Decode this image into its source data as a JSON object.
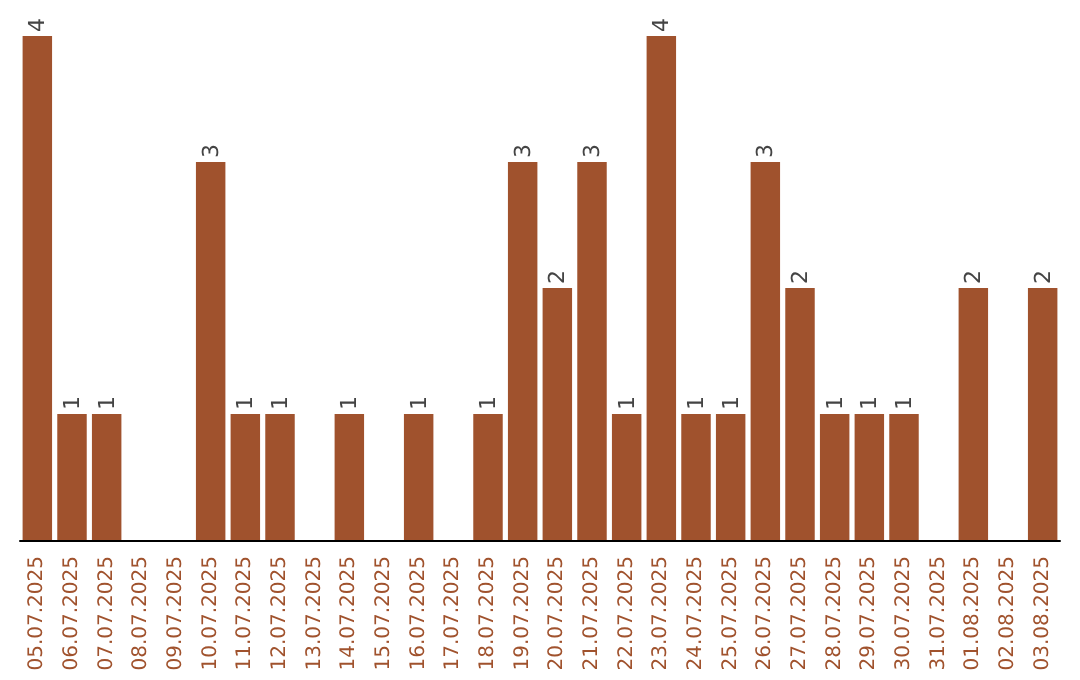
{
  "chart_data": {
    "type": "bar",
    "categories": [
      "05.07.2025",
      "06.07.2025",
      "07.07.2025",
      "08.07.2025",
      "09.07.2025",
      "10.07.2025",
      "11.07.2025",
      "12.07.2025",
      "13.07.2025",
      "14.07.2025",
      "15.07.2025",
      "16.07.2025",
      "17.07.2025",
      "18.07.2025",
      "19.07.2025",
      "20.07.2025",
      "21.07.2025",
      "22.07.2025",
      "23.07.2025",
      "24.07.2025",
      "25.07.2025",
      "26.07.2025",
      "27.07.2025",
      "28.07.2025",
      "29.07.2025",
      "30.07.2025",
      "31.07.2025",
      "01.08.2025",
      "02.08.2025",
      "03.08.2025"
    ],
    "values": [
      4,
      1,
      1,
      0,
      0,
      3,
      1,
      1,
      0,
      1,
      0,
      1,
      0,
      1,
      3,
      2,
      3,
      1,
      4,
      1,
      1,
      3,
      2,
      1,
      1,
      1,
      0,
      2,
      0,
      2
    ],
    "value_labels": [
      "4",
      "1",
      "1",
      null,
      null,
      "3",
      "1",
      "1",
      null,
      "1",
      null,
      "1",
      null,
      "1",
      "3",
      "2",
      "3",
      "1",
      "4",
      "1",
      "1",
      "3",
      "2",
      "1",
      "1",
      "1",
      null,
      "2",
      null,
      "2"
    ],
    "color": "#a0522d",
    "grid": false
  }
}
